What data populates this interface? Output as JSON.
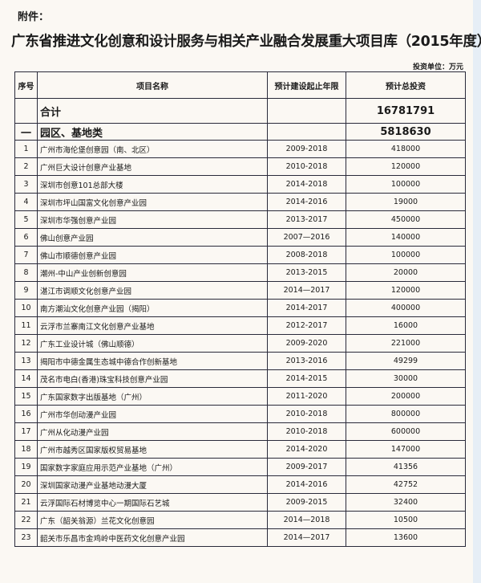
{
  "attachment_label": "附件：",
  "title": "广东省推进文化创意和设计服务与相关产业融合发展重大项目库（2015年度）",
  "unit_note": "投资单位：万元",
  "columns": [
    "序号",
    "项目名称",
    "预计建设起止年限",
    "预计总投资"
  ],
  "total": {
    "label": "合计",
    "amount": "16781791"
  },
  "category": {
    "seq": "一",
    "label": "园区、基地类",
    "amount": "5818630"
  },
  "rows": [
    {
      "seq": "1",
      "name": "广州市海伦堡创意园（南、北区）",
      "years": "2009-2018",
      "amount": "418000"
    },
    {
      "seq": "2",
      "name": "广州巨大设计创意产业基地",
      "years": "2010-2018",
      "amount": "120000"
    },
    {
      "seq": "3",
      "name": "深圳市创意101总部大楼",
      "years": "2014-2018",
      "amount": "100000"
    },
    {
      "seq": "4",
      "name": "深圳市坪山国富文化创意产业园",
      "years": "2014-2016",
      "amount": "19000"
    },
    {
      "seq": "5",
      "name": "深圳市华强创意产业园",
      "years": "2013-2017",
      "amount": "450000"
    },
    {
      "seq": "6",
      "name": "佛山创意产业园",
      "years": "2007—2016",
      "amount": "140000"
    },
    {
      "seq": "7",
      "name": "佛山市顺德创意产业园",
      "years": "2008-2018",
      "amount": "100000"
    },
    {
      "seq": "8",
      "name": "潮州-中山产业创新创意园",
      "years": "2013-2015",
      "amount": "20000"
    },
    {
      "seq": "9",
      "name": "湛江市调顺文化创意产业园",
      "years": "2014—2017",
      "amount": "120000"
    },
    {
      "seq": "10",
      "name": "南方潮汕文化创意产业园（揭阳）",
      "years": "2014-2017",
      "amount": "400000"
    },
    {
      "seq": "11",
      "name": "云浮市兰寨南江文化创意产业基地",
      "years": "2012-2017",
      "amount": "16000"
    },
    {
      "seq": "12",
      "name": "广东工业设计城（佛山顺德）",
      "years": "2009-2020",
      "amount": "221000"
    },
    {
      "seq": "13",
      "name": "揭阳市中德金属生态城中德合作创新基地",
      "years": "2013-2016",
      "amount": "49299"
    },
    {
      "seq": "14",
      "name": "茂名市电白(香港)珠宝科技创意产业园",
      "years": "2014-2015",
      "amount": "30000"
    },
    {
      "seq": "15",
      "name": "广东国家数字出版基地（广州）",
      "years": "2011-2020",
      "amount": "200000"
    },
    {
      "seq": "16",
      "name": "广州市华创动漫产业园",
      "years": "2010-2018",
      "amount": "800000"
    },
    {
      "seq": "17",
      "name": "广州从化动漫产业园",
      "years": "2010-2018",
      "amount": "600000"
    },
    {
      "seq": "18",
      "name": "广州市越秀区国家版权贸易基地",
      "years": "2014-2020",
      "amount": "147000"
    },
    {
      "seq": "19",
      "name": "国家数字家庭应用示范产业基地（广州）",
      "years": "2009-2017",
      "amount": "41356"
    },
    {
      "seq": "20",
      "name": "深圳国家动漫产业基地动漫大厦",
      "years": "2014-2016",
      "amount": "42752"
    },
    {
      "seq": "21",
      "name": "云浮国际石材博览中心一期国际石艺城",
      "years": "2009-2015",
      "amount": "32400"
    },
    {
      "seq": "22",
      "name": "广东（韶关翁源）兰花文化创意园",
      "years": "2014—2018",
      "amount": "10500"
    },
    {
      "seq": "23",
      "name": "韶关市乐昌市金鸡岭中医药文化创意产业园",
      "years": "2014—2017",
      "amount": "13600"
    }
  ]
}
